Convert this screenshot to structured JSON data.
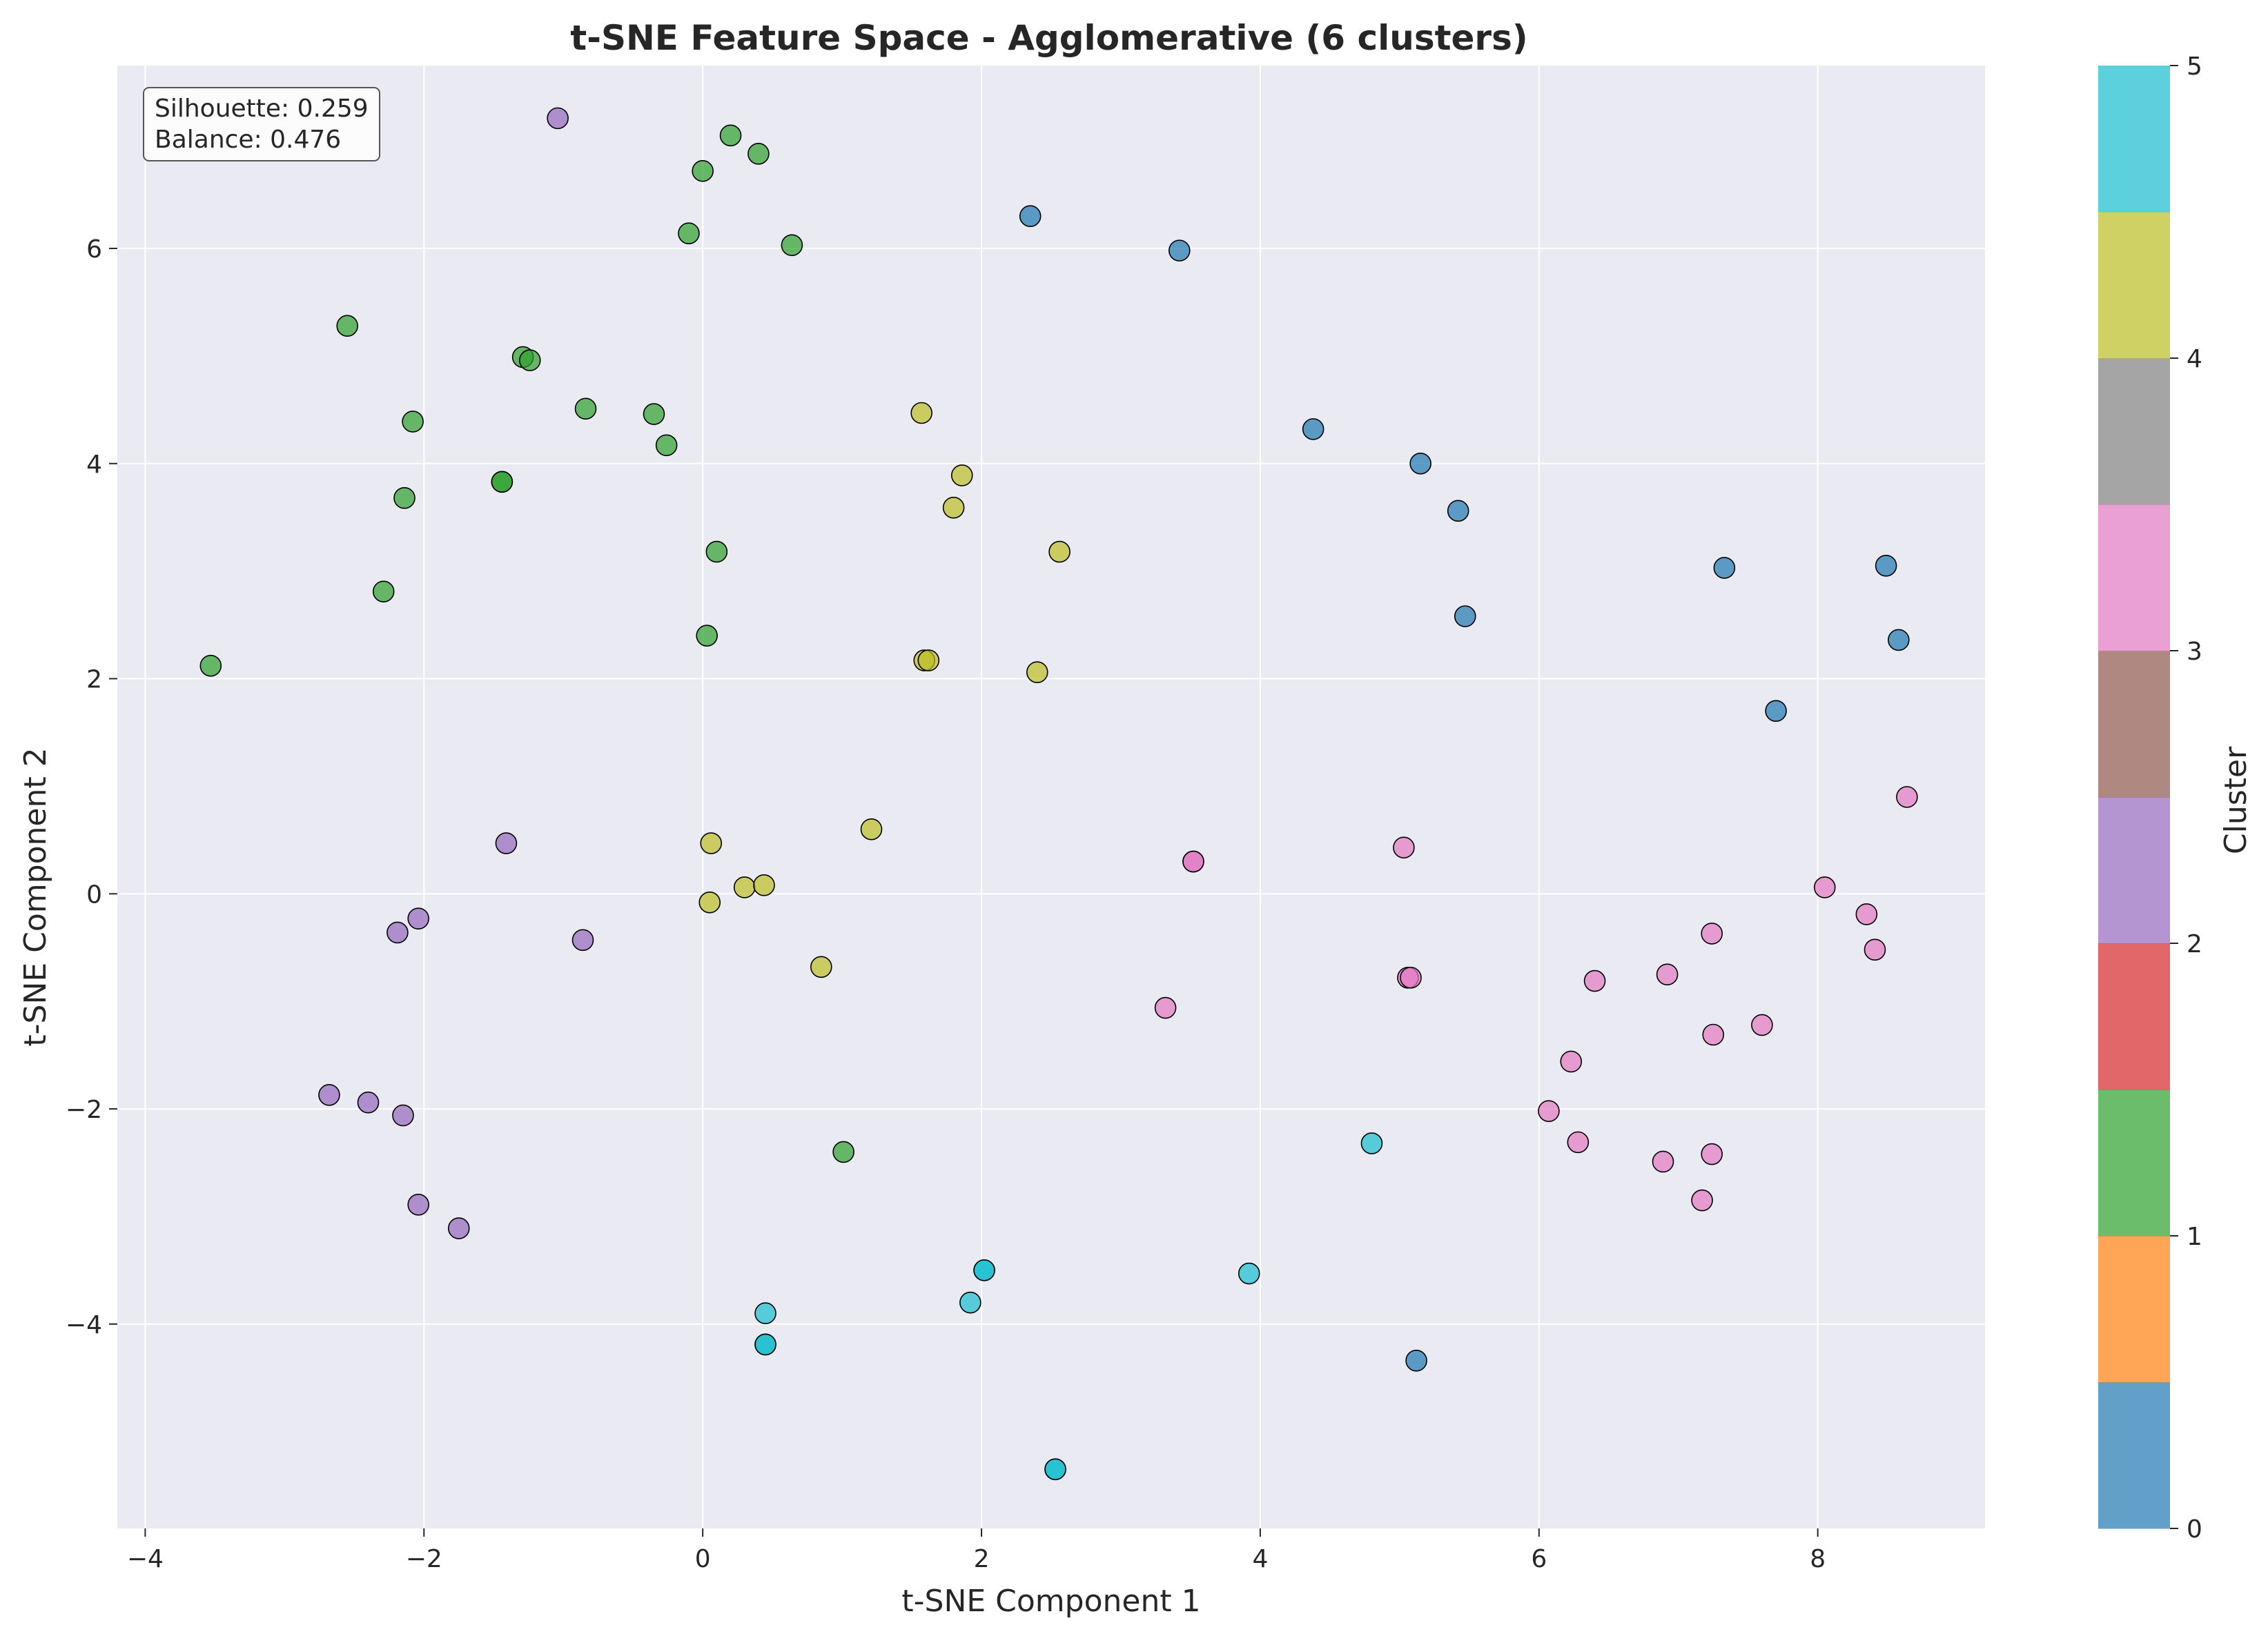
{
  "chart_data": {
    "type": "scatter",
    "title": "t-SNE Feature Space - Agglomerative (6 clusters)",
    "xlabel": "t-SNE Component 1",
    "ylabel": "t-SNE Component 2",
    "xlim": [
      -4.2,
      9.2
    ],
    "ylim": [
      -5.9,
      7.7
    ],
    "xticks": [
      -4,
      -2,
      0,
      2,
      4,
      6,
      8
    ],
    "yticks": [
      -4,
      -2,
      0,
      2,
      4,
      6
    ],
    "tick_labels": {
      "x": [
        "−4",
        "−2",
        "0",
        "2",
        "4",
        "6",
        "8"
      ],
      "y": [
        "−4",
        "−2",
        "0",
        "2",
        "4",
        "6"
      ]
    },
    "grid": true,
    "annotation_lines": [
      "Silhouette: 0.259",
      "Balance: 0.476"
    ],
    "colorbar": {
      "label": "Cluster",
      "ticks": [
        "0",
        "1",
        "2",
        "3",
        "4",
        "5"
      ],
      "colors": [
        "#1f77b4",
        "#ff7f0e",
        "#2ca02c",
        "#d62728",
        "#9467bd",
        "#8c564b",
        "#e377c2",
        "#7f7f7f",
        "#bcbd22",
        "#17becf"
      ]
    },
    "cluster_colors": {
      "0": "#1f77b4",
      "1": "#2ca02c",
      "2": "#9467bd",
      "3": "#e377c2",
      "4": "#bcbd22",
      "5": "#17becf"
    },
    "series": [
      {
        "cluster": 0,
        "points": [
          [
            2.35,
            6.3
          ],
          [
            3.42,
            5.98
          ],
          [
            4.38,
            4.32
          ],
          [
            5.15,
            4.0
          ],
          [
            5.42,
            3.56
          ],
          [
            5.47,
            2.58
          ],
          [
            7.33,
            3.03
          ],
          [
            8.49,
            3.05
          ],
          [
            8.58,
            2.36
          ],
          [
            7.7,
            1.7
          ],
          [
            5.12,
            -4.34
          ]
        ]
      },
      {
        "cluster": 1,
        "points": [
          [
            0.2,
            7.05
          ],
          [
            0.4,
            6.88
          ],
          [
            0.0,
            6.72
          ],
          [
            -0.1,
            6.14
          ],
          [
            0.64,
            6.03
          ],
          [
            -2.55,
            5.28
          ],
          [
            -1.29,
            4.99
          ],
          [
            -1.24,
            4.96
          ],
          [
            -0.84,
            4.51
          ],
          [
            -0.35,
            4.46
          ],
          [
            -2.08,
            4.39
          ],
          [
            -0.26,
            4.17
          ],
          [
            -1.44,
            3.83
          ],
          [
            -1.44,
            3.83
          ],
          [
            -2.14,
            3.68
          ],
          [
            0.1,
            3.18
          ],
          [
            -2.29,
            2.81
          ],
          [
            0.03,
            2.4
          ],
          [
            -3.53,
            2.12
          ],
          [
            1.01,
            -2.4
          ]
        ]
      },
      {
        "cluster": 2,
        "points": [
          [
            -1.04,
            7.21
          ],
          [
            -1.41,
            0.47
          ],
          [
            -2.19,
            -0.36
          ],
          [
            -2.04,
            -0.23
          ],
          [
            -0.86,
            -0.43
          ],
          [
            -2.68,
            -1.87
          ],
          [
            -2.4,
            -1.94
          ],
          [
            -2.15,
            -2.06
          ],
          [
            -2.04,
            -2.89
          ],
          [
            -1.75,
            -3.11
          ]
        ]
      },
      {
        "cluster": 3,
        "points": [
          [
            3.52,
            0.3
          ],
          [
            3.52,
            0.3
          ],
          [
            5.03,
            0.43
          ],
          [
            5.06,
            -0.78
          ],
          [
            5.08,
            -0.78
          ],
          [
            3.32,
            -1.06
          ],
          [
            8.64,
            0.9
          ],
          [
            8.05,
            0.06
          ],
          [
            8.35,
            -0.19
          ],
          [
            8.41,
            -0.52
          ],
          [
            7.24,
            -0.37
          ],
          [
            6.92,
            -0.75
          ],
          [
            6.4,
            -0.81
          ],
          [
            7.25,
            -1.31
          ],
          [
            7.6,
            -1.22
          ],
          [
            6.23,
            -1.56
          ],
          [
            6.07,
            -2.02
          ],
          [
            6.28,
            -2.31
          ],
          [
            6.89,
            -2.49
          ],
          [
            7.24,
            -2.42
          ],
          [
            7.17,
            -2.85
          ]
        ]
      },
      {
        "cluster": 4,
        "points": [
          [
            1.57,
            4.47
          ],
          [
            1.86,
            3.89
          ],
          [
            1.8,
            3.59
          ],
          [
            2.56,
            3.18
          ],
          [
            1.59,
            2.17
          ],
          [
            1.62,
            2.17
          ],
          [
            2.4,
            2.06
          ],
          [
            0.06,
            0.47
          ],
          [
            1.21,
            0.6
          ],
          [
            0.3,
            0.06
          ],
          [
            0.44,
            0.08
          ],
          [
            0.05,
            -0.08
          ],
          [
            0.85,
            -0.68
          ]
        ]
      },
      {
        "cluster": 5,
        "points": [
          [
            4.8,
            -2.32
          ],
          [
            3.92,
            -3.53
          ],
          [
            2.02,
            -3.5
          ],
          [
            2.02,
            -3.5
          ],
          [
            1.92,
            -3.8
          ],
          [
            0.45,
            -3.9
          ],
          [
            0.45,
            -4.19
          ],
          [
            0.45,
            -4.19
          ],
          [
            2.53,
            -5.35
          ],
          [
            2.53,
            -5.35
          ]
        ]
      }
    ]
  }
}
